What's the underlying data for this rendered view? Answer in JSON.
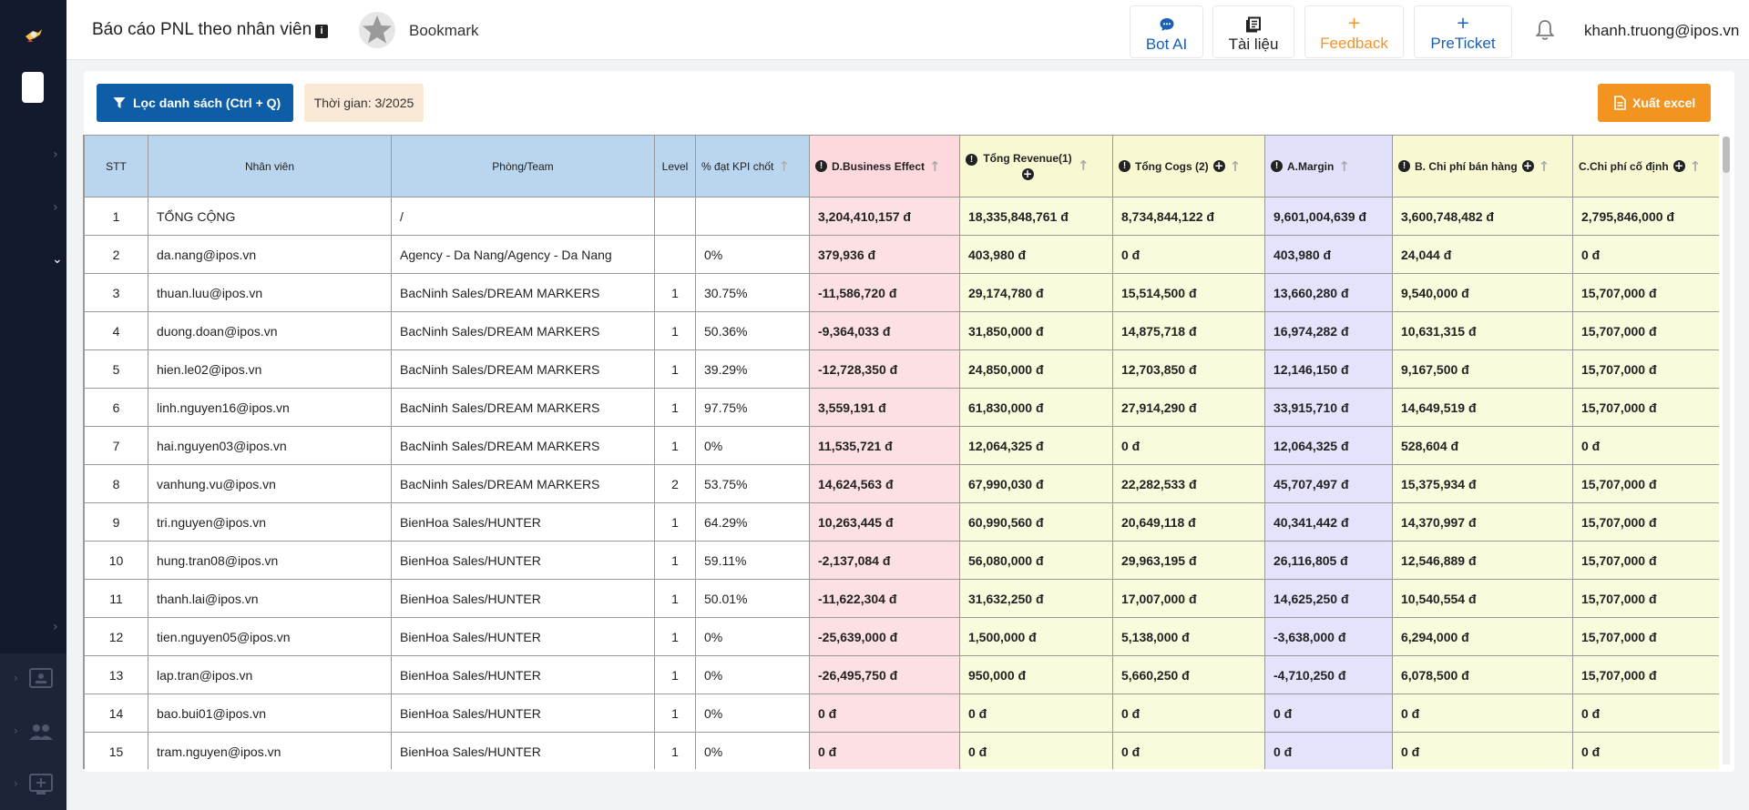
{
  "header": {
    "title": "Báo cáo PNL theo nhân viên",
    "bookmark_label": "Bookmark",
    "buttons": {
      "bot_ai": "Bot AI",
      "docs": "Tài liệu",
      "feedback": "Feedback",
      "preticket": "PreTicket"
    },
    "user_email": "khanh.truong@ipos.vn"
  },
  "toolbar": {
    "filter_label": "Lọc danh sách (Ctrl + Q)",
    "time_label": "Thời gian: 3/2025",
    "export_label": "Xuất excel"
  },
  "colors": {
    "sidebar": "#141a2e",
    "primary": "#0d5ea7",
    "orange": "#f39420",
    "header_blue": "#bad6ee",
    "business_pink": "#fde0e3",
    "revenue_yellow": "#f9fbdc",
    "margin_lavender": "#e4e3fb"
  },
  "table": {
    "columns": {
      "stt": "STT",
      "employee": "Nhân viên",
      "team": "Phòng/Team",
      "level": "Level",
      "kpi": "% đạt KPI chốt",
      "business_effect": "D.Business Effect",
      "revenue": "Tổng Revenue(1)",
      "cogs": "Tổng Cogs (2)",
      "margin": "A.Margin",
      "sales_cost": "B. Chi phí bán hàng",
      "fixed_cost": "C.Chi phí cố định"
    },
    "rows": [
      {
        "stt": "1",
        "employee": "TỔNG CỘNG",
        "team": "/",
        "level": "",
        "kpi": "",
        "d": "3,204,410,157 đ",
        "rev": "18,335,848,761 đ",
        "cogs": "8,734,844,122 đ",
        "margin": "9,601,004,639 đ",
        "b": "3,600,748,482 đ",
        "c": "2,795,846,000 đ"
      },
      {
        "stt": "2",
        "employee": "da.nang@ipos.vn",
        "team": "Agency - Da Nang/Agency - Da Nang",
        "level": "",
        "kpi": "0%",
        "d": "379,936 đ",
        "rev": "403,980 đ",
        "cogs": "0 đ",
        "margin": "403,980 đ",
        "b": "24,044 đ",
        "c": "0 đ"
      },
      {
        "stt": "3",
        "employee": "thuan.luu@ipos.vn",
        "team": "BacNinh Sales/DREAM MARKERS",
        "level": "1",
        "kpi": "30.75%",
        "d": "-11,586,720 đ",
        "rev": "29,174,780 đ",
        "cogs": "15,514,500 đ",
        "margin": "13,660,280 đ",
        "b": "9,540,000 đ",
        "c": "15,707,000 đ"
      },
      {
        "stt": "4",
        "employee": "duong.doan@ipos.vn",
        "team": "BacNinh Sales/DREAM MARKERS",
        "level": "1",
        "kpi": "50.36%",
        "d": "-9,364,033 đ",
        "rev": "31,850,000 đ",
        "cogs": "14,875,718 đ",
        "margin": "16,974,282 đ",
        "b": "10,631,315 đ",
        "c": "15,707,000 đ"
      },
      {
        "stt": "5",
        "employee": "hien.le02@ipos.vn",
        "team": "BacNinh Sales/DREAM MARKERS",
        "level": "1",
        "kpi": "39.29%",
        "d": "-12,728,350 đ",
        "rev": "24,850,000 đ",
        "cogs": "12,703,850 đ",
        "margin": "12,146,150 đ",
        "b": "9,167,500 đ",
        "c": "15,707,000 đ"
      },
      {
        "stt": "6",
        "employee": "linh.nguyen16@ipos.vn",
        "team": "BacNinh Sales/DREAM MARKERS",
        "level": "1",
        "kpi": "97.75%",
        "d": "3,559,191 đ",
        "rev": "61,830,000 đ",
        "cogs": "27,914,290 đ",
        "margin": "33,915,710 đ",
        "b": "14,649,519 đ",
        "c": "15,707,000 đ"
      },
      {
        "stt": "7",
        "employee": "hai.nguyen03@ipos.vn",
        "team": "BacNinh Sales/DREAM MARKERS",
        "level": "1",
        "kpi": "0%",
        "d": "11,535,721 đ",
        "rev": "12,064,325 đ",
        "cogs": "0 đ",
        "margin": "12,064,325 đ",
        "b": "528,604 đ",
        "c": "0 đ"
      },
      {
        "stt": "8",
        "employee": "vanhung.vu@ipos.vn",
        "team": "BacNinh Sales/DREAM MARKERS",
        "level": "2",
        "kpi": "53.75%",
        "d": "14,624,563 đ",
        "rev": "67,990,030 đ",
        "cogs": "22,282,533 đ",
        "margin": "45,707,497 đ",
        "b": "15,375,934 đ",
        "c": "15,707,000 đ"
      },
      {
        "stt": "9",
        "employee": "tri.nguyen@ipos.vn",
        "team": "BienHoa Sales/HUNTER",
        "level": "1",
        "kpi": "64.29%",
        "d": "10,263,445 đ",
        "rev": "60,990,560 đ",
        "cogs": "20,649,118 đ",
        "margin": "40,341,442 đ",
        "b": "14,370,997 đ",
        "c": "15,707,000 đ"
      },
      {
        "stt": "10",
        "employee": "hung.tran08@ipos.vn",
        "team": "BienHoa Sales/HUNTER",
        "level": "1",
        "kpi": "59.11%",
        "d": "-2,137,084 đ",
        "rev": "56,080,000 đ",
        "cogs": "29,963,195 đ",
        "margin": "26,116,805 đ",
        "b": "12,546,889 đ",
        "c": "15,707,000 đ"
      },
      {
        "stt": "11",
        "employee": "thanh.lai@ipos.vn",
        "team": "BienHoa Sales/HUNTER",
        "level": "1",
        "kpi": "50.01%",
        "d": "-11,622,304 đ",
        "rev": "31,632,250 đ",
        "cogs": "17,007,000 đ",
        "margin": "14,625,250 đ",
        "b": "10,540,554 đ",
        "c": "15,707,000 đ"
      },
      {
        "stt": "12",
        "employee": "tien.nguyen05@ipos.vn",
        "team": "BienHoa Sales/HUNTER",
        "level": "1",
        "kpi": "0%",
        "d": "-25,639,000 đ",
        "rev": "1,500,000 đ",
        "cogs": "5,138,000 đ",
        "margin": "-3,638,000 đ",
        "b": "6,294,000 đ",
        "c": "15,707,000 đ"
      },
      {
        "stt": "13",
        "employee": "lap.tran@ipos.vn",
        "team": "BienHoa Sales/HUNTER",
        "level": "1",
        "kpi": "0%",
        "d": "-26,495,750 đ",
        "rev": "950,000 đ",
        "cogs": "5,660,250 đ",
        "margin": "-4,710,250 đ",
        "b": "6,078,500 đ",
        "c": "15,707,000 đ"
      },
      {
        "stt": "14",
        "employee": "bao.bui01@ipos.vn",
        "team": "BienHoa Sales/HUNTER",
        "level": "1",
        "kpi": "0%",
        "d": "0 đ",
        "rev": "0 đ",
        "cogs": "0 đ",
        "margin": "0 đ",
        "b": "0 đ",
        "c": "0 đ"
      },
      {
        "stt": "15",
        "employee": "tram.nguyen@ipos.vn",
        "team": "BienHoa Sales/HUNTER",
        "level": "1",
        "kpi": "0%",
        "d": "0 đ",
        "rev": "0 đ",
        "cogs": "0 đ",
        "margin": "0 đ",
        "b": "0 đ",
        "c": "0 đ"
      }
    ]
  }
}
